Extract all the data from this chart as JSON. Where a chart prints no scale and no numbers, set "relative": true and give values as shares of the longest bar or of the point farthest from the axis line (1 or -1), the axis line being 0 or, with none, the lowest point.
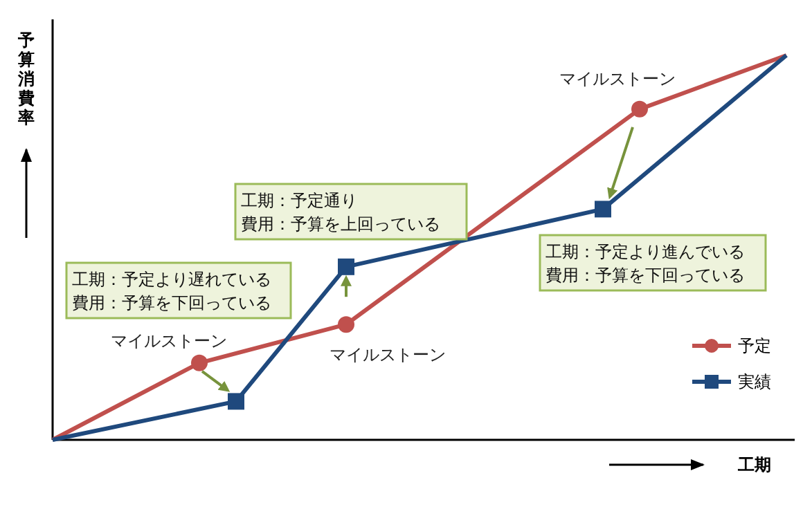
{
  "chart_data": {
    "type": "line",
    "relative": true,
    "xlabel": "工期",
    "ylabel": "予算消費率",
    "legend": "right",
    "marker": "circle",
    "line_style": "solid",
    "categories": [
      null,
      null,
      null,
      null,
      null,
      null,
      null,
      null,
      null,
      null,
      null,
      null,
      null,
      null,
      null,
      null,
      null,
      null,
      null,
      null,
      null
    ],
    "series": [
      {
        "name": "予定",
        "color": "#c0504d",
        "values": [
          0,
          null,
          null,
          null,
          0.2,
          null,
          null,
          null,
          0.3,
          null,
          null,
          null,
          null,
          null,
          null,
          null,
          0.86,
          null,
          null,
          null,
          1
        ]
      },
      {
        "name": "実績",
        "color": "#1f497d",
        "marker": "square",
        "values": [
          0,
          null,
          null,
          null,
          null,
          0.1,
          null,
          null,
          0.45,
          null,
          null,
          null,
          null,
          null,
          null,
          0.6,
          null,
          null,
          null,
          null,
          1
        ]
      }
    ],
    "annotations": [
      "マイルストーン",
      "マイルストーン",
      "マイルストーン",
      "工期：予定より遅れている",
      "費用：予算を下回っている",
      "工期：予定通り",
      "費用：予算を上回っている",
      "工期：予定より進んでいる",
      "費用：予算を下回っている"
    ]
  }
}
